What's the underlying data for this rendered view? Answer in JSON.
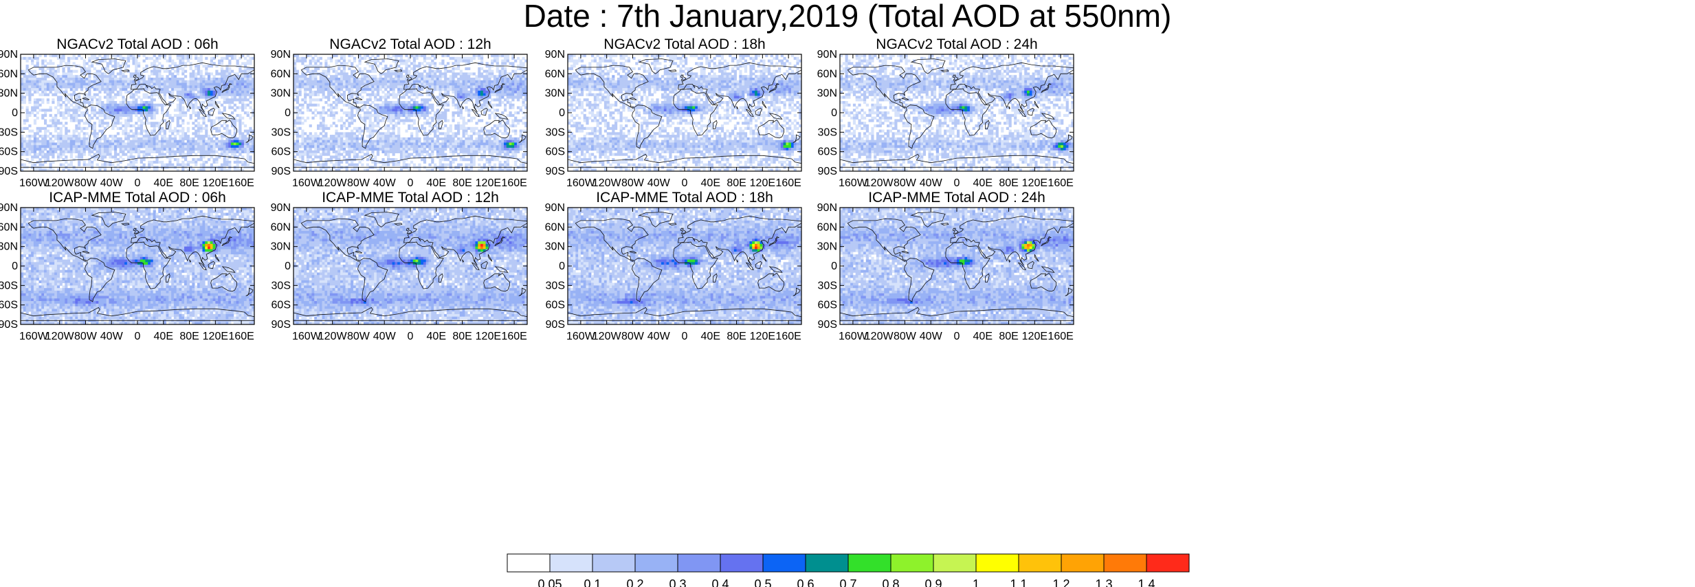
{
  "title": "Date : 7th January,2019 (Total AOD at 550nm)",
  "panels": [
    {
      "title": "NGACv2 Total AOD : 06h",
      "model": "NGACv2",
      "hour": "06h"
    },
    {
      "title": "NGACv2 Total AOD : 12h",
      "model": "NGACv2",
      "hour": "12h"
    },
    {
      "title": "NGACv2 Total AOD : 18h",
      "model": "NGACv2",
      "hour": "18h"
    },
    {
      "title": "NGACv2 Total AOD : 24h",
      "model": "NGACv2",
      "hour": "24h"
    },
    {
      "title": "ICAP-MME Total AOD : 06h",
      "model": "ICAP-MME",
      "hour": "06h"
    },
    {
      "title": "ICAP-MME Total AOD : 12h",
      "model": "ICAP-MME",
      "hour": "12h"
    },
    {
      "title": "ICAP-MME Total AOD : 18h",
      "model": "ICAP-MME",
      "hour": "18h"
    },
    {
      "title": "ICAP-MME Total AOD : 24h",
      "model": "ICAP-MME",
      "hour": "24h"
    }
  ],
  "lat_ticks": [
    "90N",
    "60N",
    "30N",
    "0",
    "30S",
    "60S",
    "90S"
  ],
  "lon_ticks": [
    "160W",
    "120W",
    "80W",
    "40W",
    "0",
    "40E",
    "80E",
    "120E",
    "160E"
  ],
  "colorbar": {
    "labels": [
      "0.05",
      "0.1",
      "0.2",
      "0.3",
      "0.4",
      "0.5",
      "0.6",
      "0.7",
      "0.8",
      "0.9",
      "1",
      "1.1",
      "1.2",
      "1.3",
      "1.4"
    ],
    "colors": [
      "#ffffff",
      "#d6e2fb",
      "#b7c9f6",
      "#98b2f5",
      "#8096f3",
      "#6572f0",
      "#0c64f5",
      "#008f8f",
      "#33e02a",
      "#8ef22b",
      "#c6f452",
      "#ffff00",
      "#ffc20a",
      "#ffa305",
      "#ff7a08",
      "#ff2a1a"
    ]
  }
}
